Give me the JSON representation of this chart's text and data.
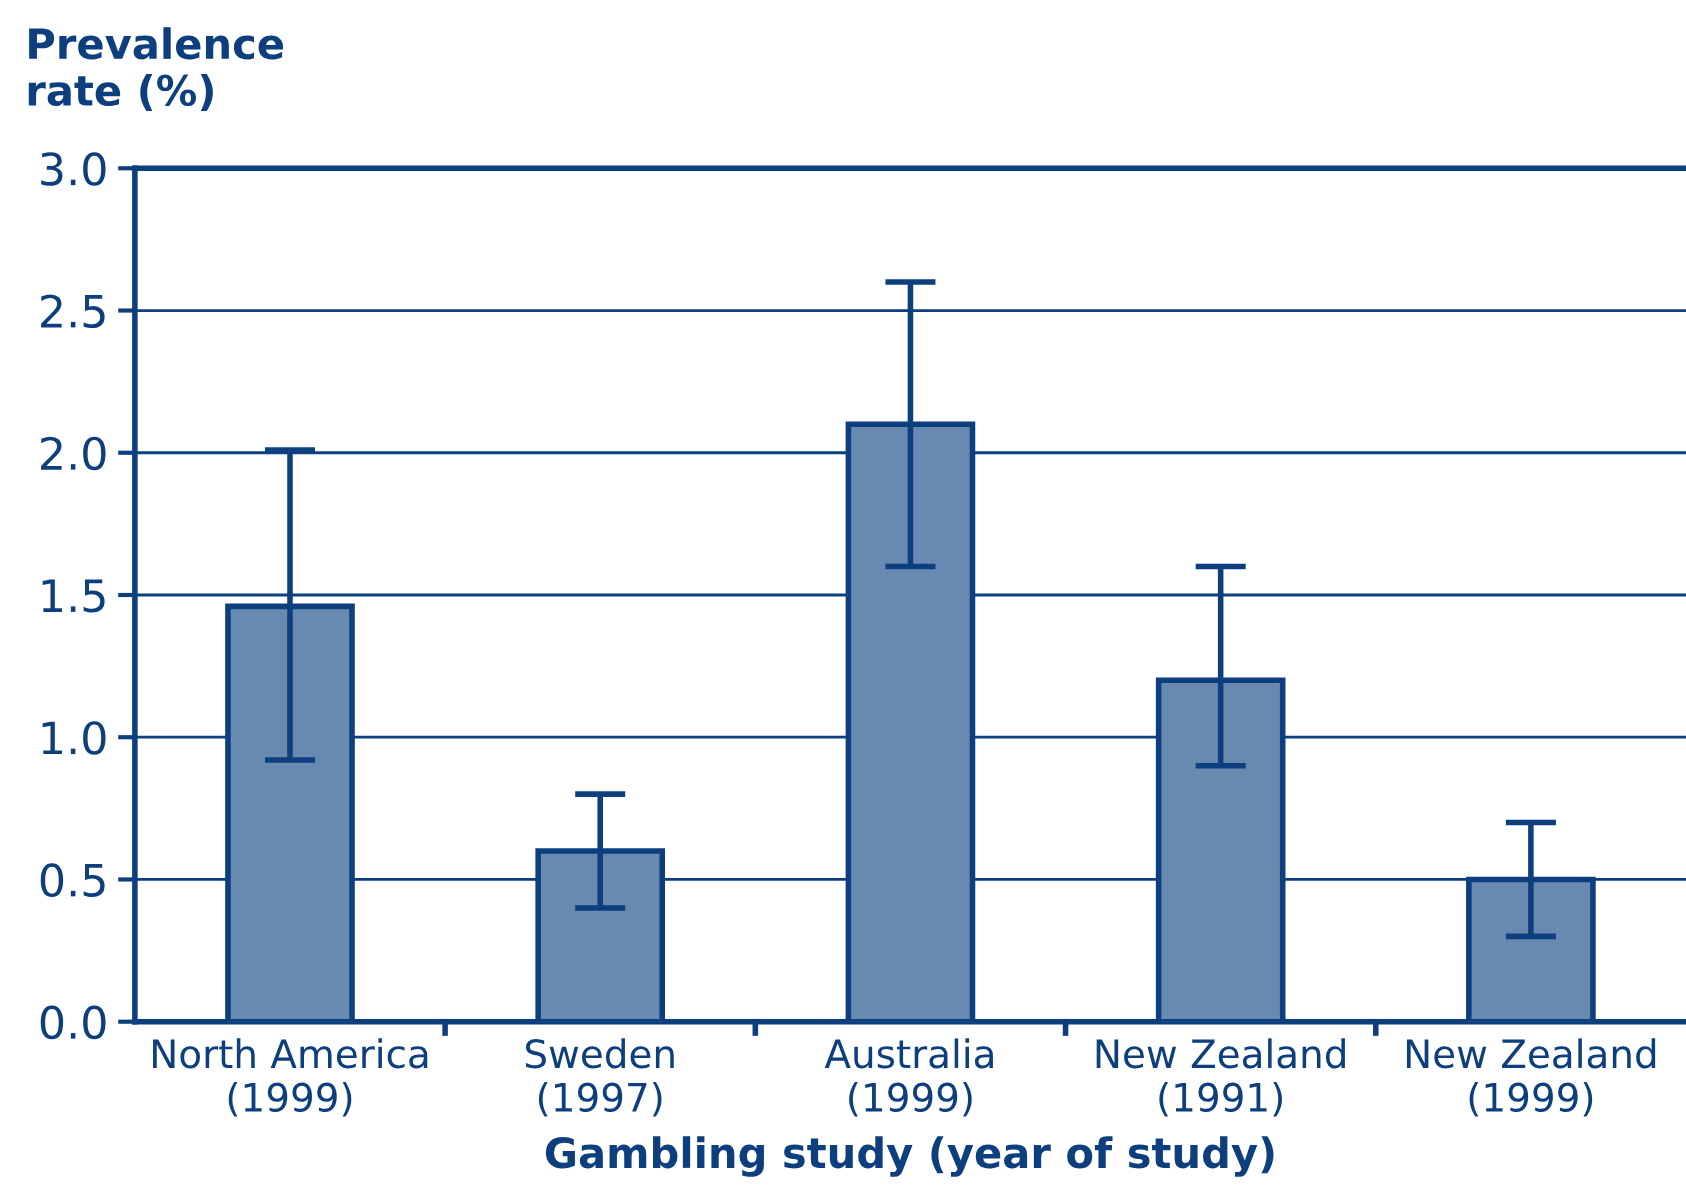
{
  "chart_data": {
    "type": "bar",
    "ylabel": "Prevalence\nrate (%)",
    "xlabel": "Gambling study (year of study)",
    "categories": [
      "North America\n(1999)",
      "Sweden\n(1997)",
      "Australia\n(1999)",
      "New Zealand\n(1991)",
      "New Zealand\n(1999)"
    ],
    "series": [
      {
        "color": "#6889b0",
        "values": [
          1.46,
          0.6,
          2.1,
          1.2,
          0.5
        ],
        "errors": [
          [
            0.92,
            2.01
          ],
          [
            0.4,
            0.8
          ],
          [
            1.6,
            2.6
          ],
          [
            0.9,
            1.6
          ],
          [
            0.3,
            0.7
          ]
        ]
      }
    ],
    "ylim": [
      0,
      3
    ],
    "yticks": [
      {
        "value": 0,
        "label": "0.0"
      },
      {
        "value": 0.5,
        "label": "0.5"
      },
      {
        "value": 1,
        "label": "1.0"
      },
      {
        "value": 1.5,
        "label": "1.5"
      },
      {
        "value": 2,
        "label": "2.0"
      },
      {
        "value": 2.5,
        "label": "2.5"
      },
      {
        "value": 3,
        "label": "3.0"
      }
    ],
    "grid": "y"
  }
}
